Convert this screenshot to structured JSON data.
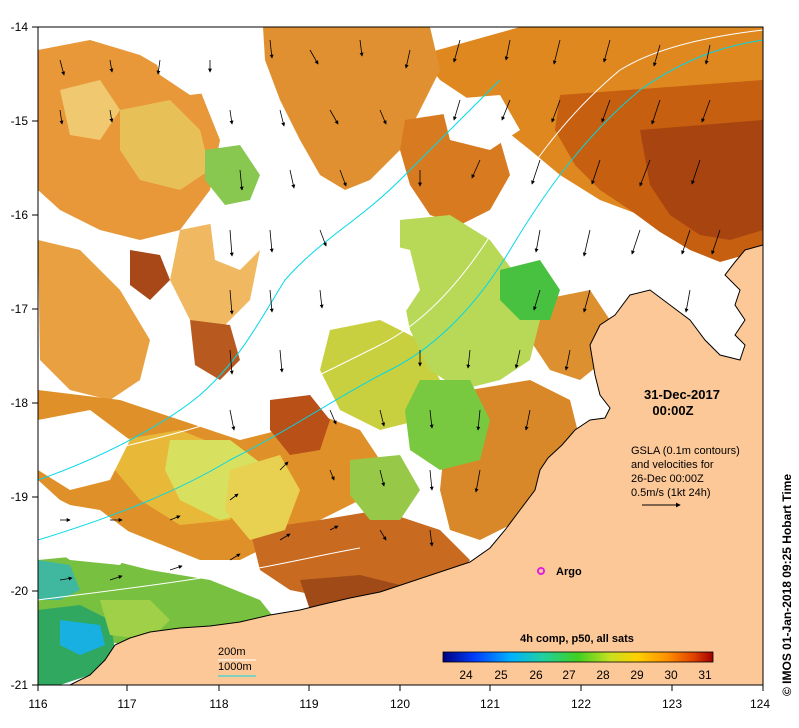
{
  "map": {
    "lon_range": [
      116,
      124
    ],
    "lat_range": [
      -21,
      -14
    ],
    "x_ticks": [
      "116",
      "117",
      "118",
      "119",
      "120",
      "121",
      "122",
      "123",
      "124"
    ],
    "y_ticks": [
      "-14",
      "-15",
      "-16",
      "-17",
      "-18",
      "-19",
      "-20",
      "-21"
    ],
    "land_color": "#fcc898",
    "contour_color": "#00d8e8"
  },
  "annotations": {
    "date_line1": "31-Dec-2017",
    "date_line2": "00:00Z",
    "gsla_line1": "GSLA (0.1m contours)",
    "gsla_line2": "and velocities for",
    "gsla_line3": "26-Dec 00:00Z",
    "gsla_line4": "0.5m/s (1kt 24h)",
    "argo_label": "Argo",
    "argo_color": "#e020e0",
    "depth_200": "200m",
    "depth_1000": "1000m",
    "credit": "© IMOS 01-Jan-2018 09:25 Hobart Time"
  },
  "colorbar": {
    "title": "4h comp, p50, all sats",
    "labels": [
      "24",
      "25",
      "26",
      "27",
      "28",
      "29",
      "30",
      "31"
    ]
  }
}
